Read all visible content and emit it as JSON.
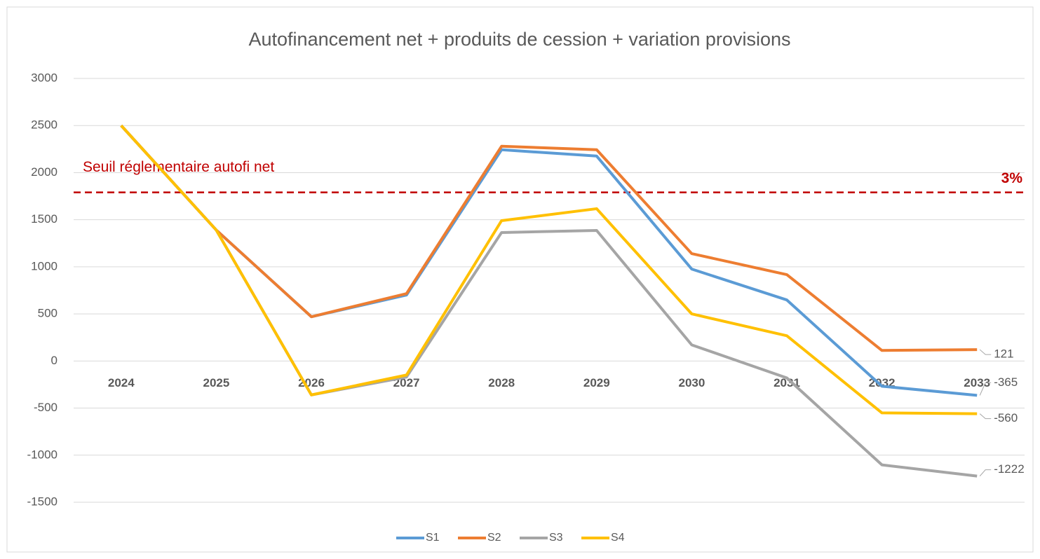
{
  "chart_data": {
    "type": "line",
    "title": "Autofinancement net + produits de cession + variation provisions",
    "categories": [
      "2024",
      "2025",
      "2026",
      "2027",
      "2028",
      "2029",
      "2030",
      "2031",
      "2032",
      "2033"
    ],
    "series": [
      {
        "name": "S1",
        "color": "#5b9bd5",
        "values": [
          2500,
          1390,
          470,
          700,
          2243,
          2176,
          976,
          648,
          -268,
          -365
        ]
      },
      {
        "name": "S2",
        "color": "#ed7d31",
        "values": [
          2500,
          1390,
          470,
          715,
          2280,
          2243,
          1140,
          917,
          112,
          121
        ]
      },
      {
        "name": "S3",
        "color": "#a5a5a5",
        "values": [
          2500,
          1390,
          -360,
          -171,
          1364,
          1386,
          171,
          -180,
          -1103,
          -1222
        ]
      },
      {
        "name": "S4",
        "color": "#ffc000",
        "values": [
          2500,
          1390,
          -360,
          -149,
          1490,
          1617,
          500,
          268,
          -551,
          -560
        ]
      }
    ],
    "ylim": [
      -1500,
      3000
    ],
    "yticks": [
      -1500,
      -1000,
      -500,
      0,
      500,
      1000,
      1500,
      2000,
      2500,
      3000
    ],
    "grid": true,
    "legend": "bottom",
    "threshold": {
      "text": "Seuil réglementaire autofi net",
      "label": "3%",
      "value": 1790,
      "color": "#c00000"
    }
  }
}
